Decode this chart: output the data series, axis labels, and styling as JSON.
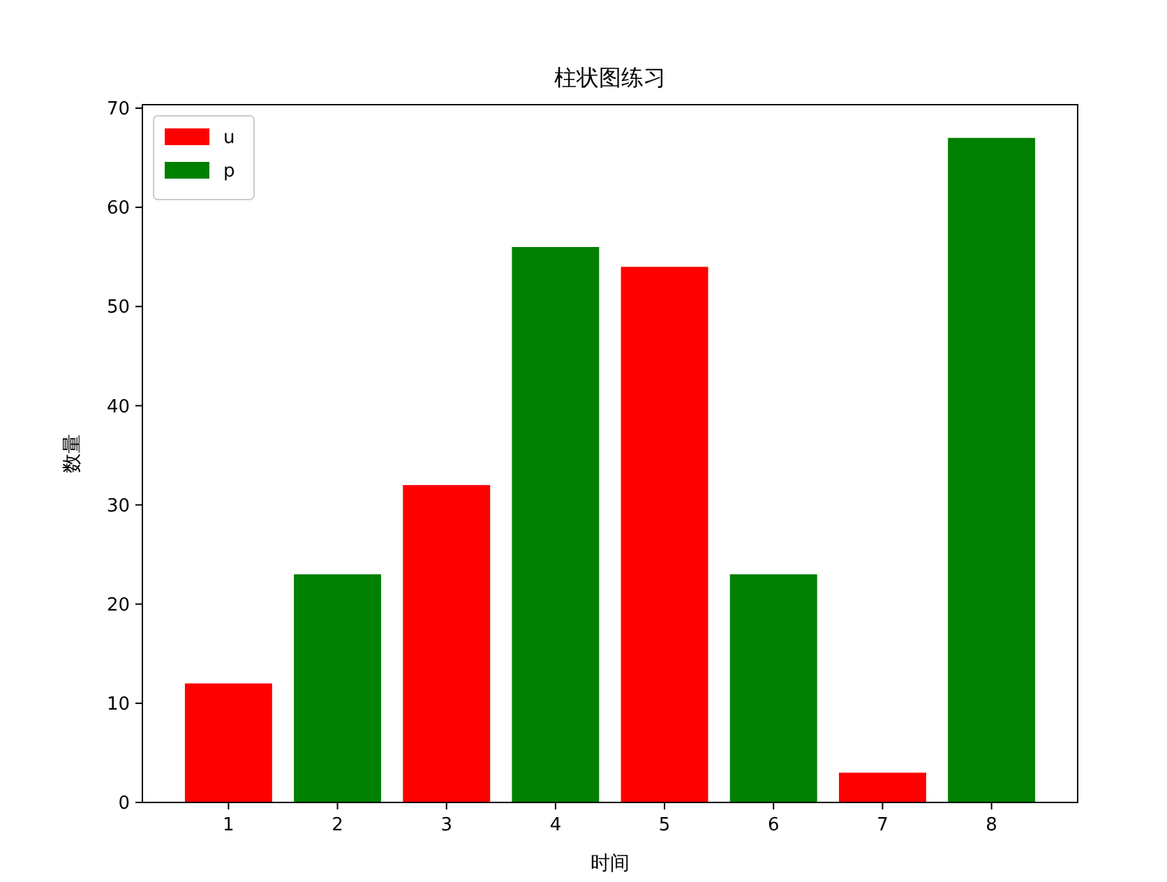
{
  "chart_data": {
    "type": "bar",
    "title": "柱状图练习",
    "xlabel": "时间",
    "ylabel": "数量",
    "series": [
      {
        "name": "u",
        "color": "#ff0000",
        "x": [
          1,
          3,
          5,
          7
        ],
        "values": [
          12,
          32,
          54,
          3
        ]
      },
      {
        "name": "p",
        "color": "#008000",
        "x": [
          2,
          4,
          6,
          8
        ],
        "values": [
          23,
          56,
          23,
          67
        ]
      }
    ],
    "xlim": [
      0.21,
      8.79
    ],
    "xticks": [
      1,
      2,
      3,
      4,
      5,
      6,
      7,
      8
    ],
    "ylim": [
      0,
      70.35
    ],
    "yticks": [
      0,
      10,
      20,
      30,
      40,
      50,
      60,
      70
    ],
    "legend": "top left"
  }
}
